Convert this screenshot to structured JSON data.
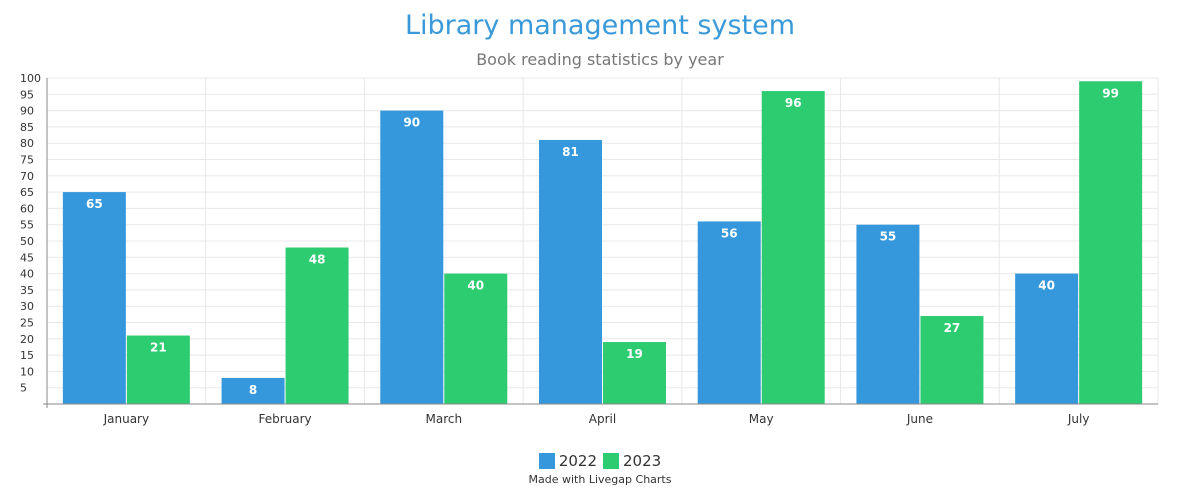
{
  "chart_data": {
    "type": "bar",
    "title": "Library management system",
    "subtitle": "Book reading statistics by year",
    "categories": [
      "January",
      "February",
      "March",
      "April",
      "May",
      "June",
      "July"
    ],
    "series": [
      {
        "name": "2022",
        "color": "#3598dc",
        "values": [
          65,
          8,
          90,
          81,
          56,
          55,
          40
        ]
      },
      {
        "name": "2023",
        "color": "#2ecc71",
        "values": [
          21,
          48,
          40,
          19,
          96,
          27,
          99
        ]
      }
    ],
    "ylim": [
      0,
      100
    ],
    "yticks": [
      5,
      10,
      15,
      20,
      25,
      30,
      35,
      40,
      45,
      50,
      55,
      60,
      65,
      70,
      75,
      80,
      85,
      90,
      95,
      100
    ],
    "grid": true,
    "legend_position": "bottom"
  },
  "credit": "Made with Livegap Charts"
}
